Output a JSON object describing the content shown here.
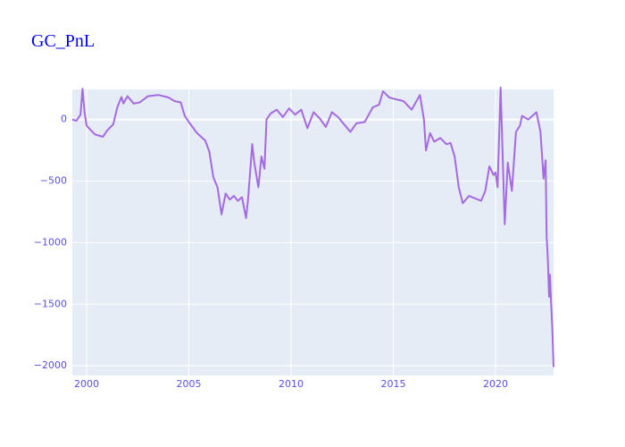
{
  "chart_data": {
    "type": "line",
    "title": "GC_PnL",
    "x": [
      1999.3,
      1999.5,
      1999.7,
      1999.8,
      1999.9,
      2000.0,
      2000.4,
      2000.8,
      2001.0,
      2001.3,
      2001.5,
      2001.7,
      2001.8,
      2002.0,
      2002.3,
      2002.6,
      2003.0,
      2003.5,
      2004.0,
      2004.3,
      2004.6,
      2004.8,
      2005.0,
      2005.4,
      2005.8,
      2006.0,
      2006.2,
      2006.4,
      2006.6,
      2006.8,
      2007.0,
      2007.2,
      2007.4,
      2007.6,
      2007.8,
      2007.9,
      2008.1,
      2008.2,
      2008.4,
      2008.55,
      2008.7,
      2008.8,
      2009.0,
      2009.3,
      2009.6,
      2009.9,
      2010.2,
      2010.5,
      2010.8,
      2011.1,
      2011.4,
      2011.7,
      2012.0,
      2012.3,
      2012.6,
      2012.9,
      2013.2,
      2013.6,
      2014.0,
      2014.3,
      2014.5,
      2014.8,
      2015.0,
      2015.5,
      2015.9,
      2016.2,
      2016.3,
      2016.5,
      2016.6,
      2016.8,
      2017.0,
      2017.3,
      2017.6,
      2017.8,
      2018.0,
      2018.2,
      2018.4,
      2018.7,
      2019.0,
      2019.3,
      2019.5,
      2019.7,
      2019.9,
      2020.0,
      2020.1,
      2020.25,
      2020.35,
      2020.45,
      2020.6,
      2020.8,
      2021.0,
      2021.2,
      2021.3,
      2021.6,
      2022.0,
      2022.2,
      2022.35,
      2022.45,
      2022.5,
      2022.55,
      2022.62,
      2022.66,
      2022.72,
      2022.78,
      2022.84
    ],
    "series": [
      {
        "name": "GC_PnL",
        "color": "#a569e0",
        "values": [
          0,
          -10,
          40,
          250,
          60,
          -50,
          -120,
          -140,
          -90,
          -40,
          100,
          183,
          130,
          190,
          130,
          140,
          190,
          200,
          180,
          150,
          140,
          30,
          -20,
          -110,
          -170,
          -260,
          -470,
          -550,
          -770,
          -600,
          -650,
          -620,
          -660,
          -630,
          -800,
          -640,
          -200,
          -350,
          -550,
          -300,
          -400,
          0,
          50,
          80,
          20,
          90,
          40,
          80,
          -70,
          60,
          10,
          -60,
          60,
          20,
          -40,
          -100,
          -30,
          -20,
          100,
          120,
          230,
          180,
          170,
          150,
          80,
          170,
          200,
          0,
          -250,
          -110,
          -180,
          -150,
          -200,
          -190,
          -300,
          -550,
          -680,
          -620,
          -640,
          -660,
          -580,
          -380,
          -450,
          -430,
          -550,
          260,
          -300,
          -850,
          -350,
          -580,
          -100,
          -50,
          30,
          0,
          60,
          -100,
          -480,
          -330,
          -950,
          -1100,
          -1440,
          -1260,
          -1500,
          -1700,
          -2010
        ]
      }
    ],
    "xlim": [
      1999.3,
      2022.84
    ],
    "ylim": [
      -2079,
      245
    ],
    "xticks": [
      2000,
      2005,
      2010,
      2015,
      2020
    ],
    "yticks": [
      {
        "value": -2000,
        "label": "−2000"
      },
      {
        "value": -1500,
        "label": "−1500"
      },
      {
        "value": -1000,
        "label": "−1000"
      },
      {
        "value": -500,
        "label": "−500"
      },
      0
    ],
    "grid": true
  }
}
